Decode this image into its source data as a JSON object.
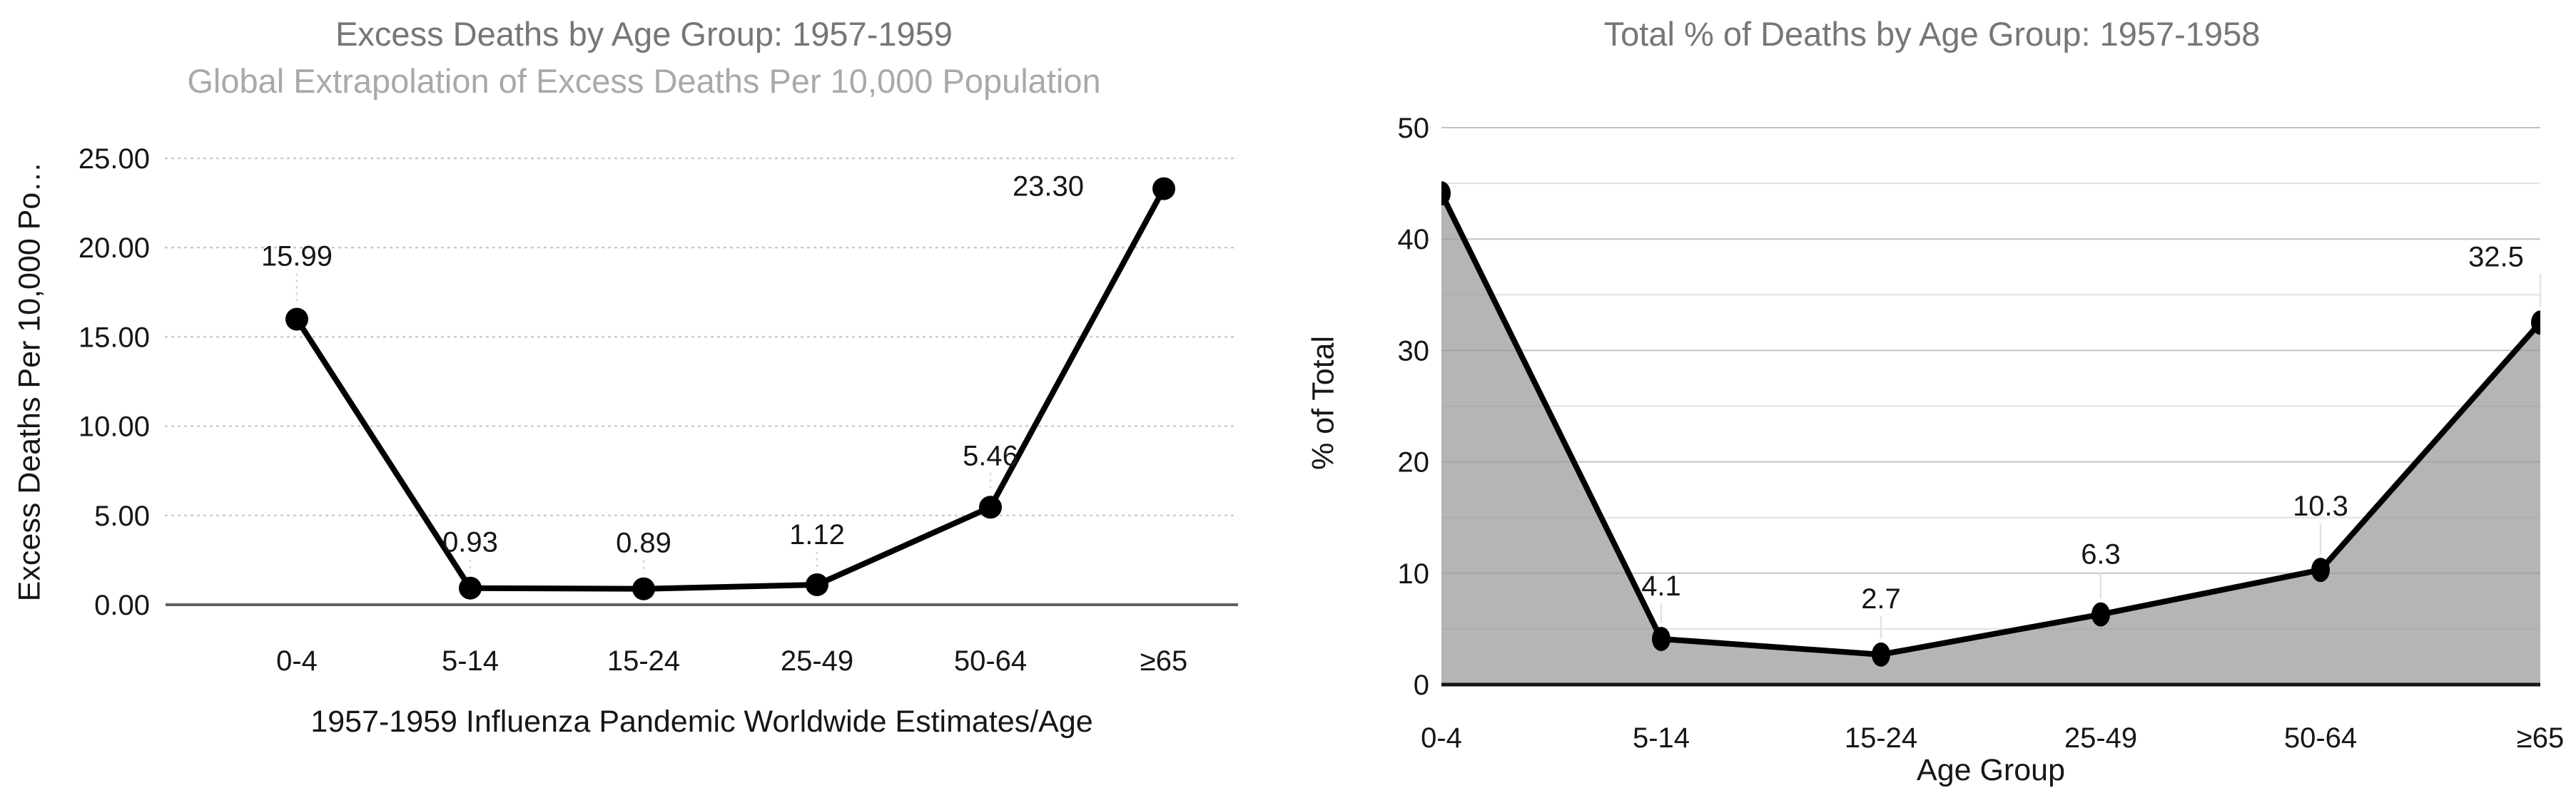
{
  "chart_data": [
    {
      "type": "line",
      "title": "Excess Deaths by Age Group: 1957-1959",
      "subtitle": "Global Extrapolation of Excess Deaths Per 10,000 Population",
      "xlabel": "1957-1959 Influenza Pandemic Worldwide Estimates/Age",
      "ylabel": "Excess Deaths Per 10,000 Po…",
      "categories": [
        "0-4",
        "5-14",
        "15-24",
        "25-49",
        "50-64",
        "≥65"
      ],
      "values": [
        15.99,
        0.93,
        0.89,
        1.12,
        5.46,
        23.3
      ],
      "point_labels": [
        "15.99",
        "0.93",
        "0.89",
        "1.12",
        "5.46",
        "23.30"
      ],
      "ylim": [
        0,
        25
      ],
      "ytick_step": 5,
      "ytick_labels": [
        "0.00",
        "5.00",
        "10.00",
        "15.00",
        "20.00",
        "25.00"
      ],
      "grid": "dashed",
      "legend": "none",
      "colors": {
        "line": "#000000",
        "marker": "#000000",
        "grid": "#c8c8c8",
        "baseline": "#5f5f5f",
        "leader": "#d4d4d4",
        "title": "#767676",
        "subtitle": "#a9a9a9",
        "text": "#161616"
      }
    },
    {
      "type": "area",
      "title": "Total % of Deaths by Age Group: 1957-1958",
      "subtitle": "",
      "xlabel": "Age Group",
      "ylabel": "% of Total",
      "categories": [
        "0-4",
        "5-14",
        "15-24",
        "25-49",
        "50-64",
        "≥65"
      ],
      "values": [
        44.1,
        4.1,
        2.7,
        6.3,
        10.3,
        32.5
      ],
      "point_labels": [
        "",
        "4.1",
        "2.7",
        "6.3",
        "10.3",
        "32.5"
      ],
      "ylim": [
        0,
        50
      ],
      "ytick_step": 10,
      "minor_ytick_step": 5,
      "ytick_labels": [
        "0",
        "10",
        "20",
        "30",
        "40",
        "50"
      ],
      "grid": "solid",
      "legend": "none",
      "colors": {
        "line": "#000000",
        "marker": "#000000",
        "fill": "#b5b5b5",
        "grid": "#9b9b9b",
        "baseline": "#161616",
        "leader": "#e2e2e2",
        "title": "#767676",
        "text": "#161616"
      }
    }
  ]
}
